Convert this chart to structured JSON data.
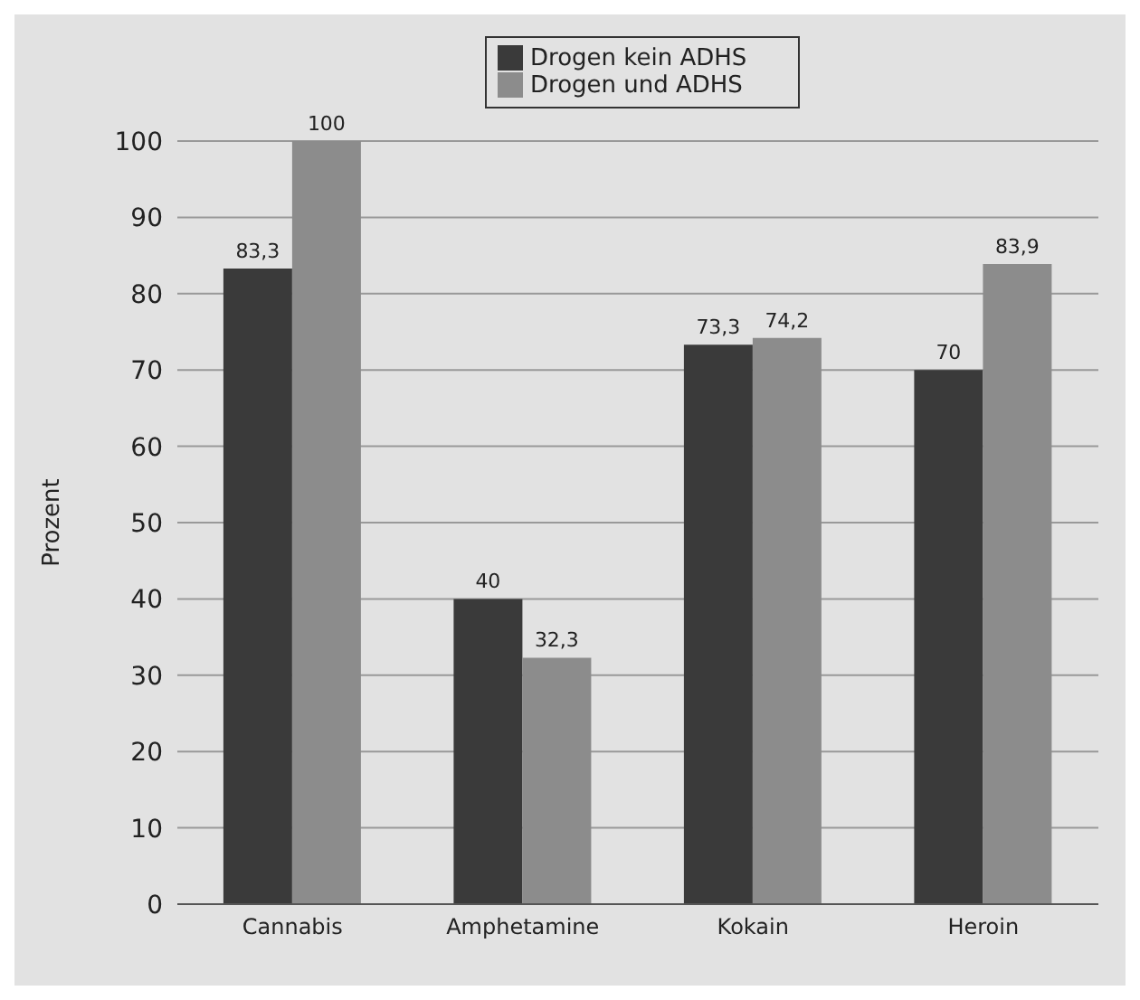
{
  "chart_data": {
    "type": "bar",
    "ylabel": "Prozent",
    "categories": [
      "Cannabis",
      "Amphetamine",
      "Kokain",
      "Heroin"
    ],
    "series": [
      {
        "name": "Drogen kein ADHS",
        "color": "#3a3a3a",
        "values": [
          83.3,
          40,
          73.3,
          70
        ],
        "value_labels": [
          "83,3",
          "40",
          "73,3",
          "70"
        ]
      },
      {
        "name": "Drogen und ADHS",
        "color": "#8c8c8c",
        "values": [
          100,
          32.3,
          74.2,
          83.9
        ],
        "value_labels": [
          "100",
          "32,3",
          "74,2",
          "83,9"
        ]
      }
    ],
    "ylim": [
      0,
      100
    ],
    "yticks": [
      0,
      10,
      20,
      30,
      40,
      50,
      60,
      70,
      80,
      90,
      100
    ],
    "grid": "y",
    "legend": "top"
  }
}
